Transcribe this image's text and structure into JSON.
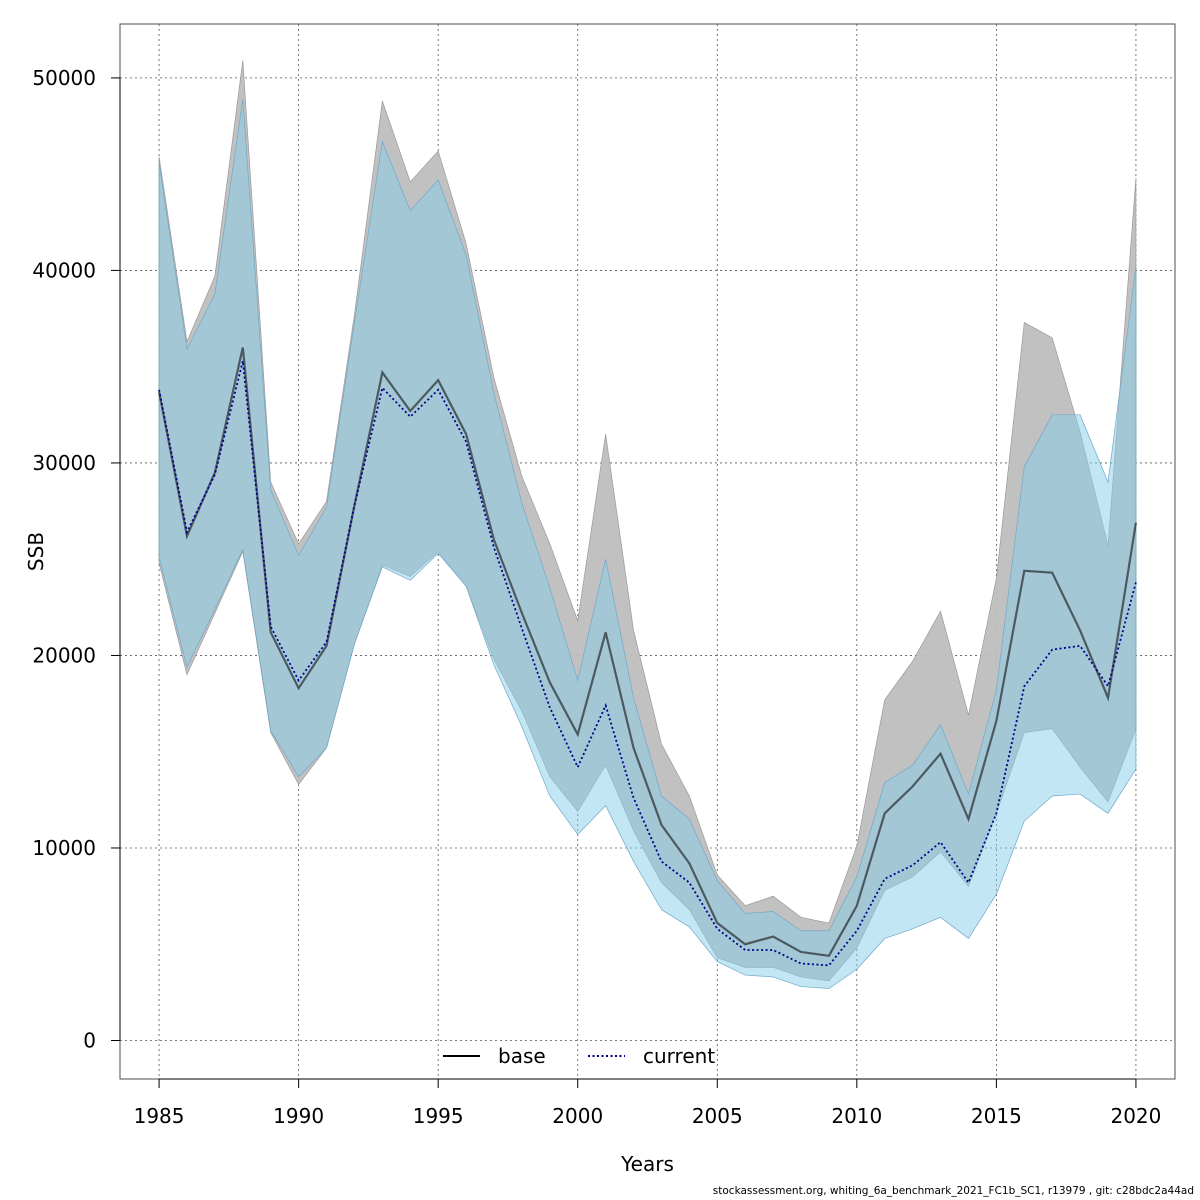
{
  "chart_data": {
    "type": "area",
    "xlabel": "Years",
    "ylabel": "SSB",
    "xlim": [
      1983.6,
      2021.4
    ],
    "ylim": [
      -2000,
      52800
    ],
    "x_ticks": [
      1985,
      1990,
      1995,
      2000,
      2005,
      2010,
      2015,
      2020
    ],
    "y_ticks": [
      0,
      10000,
      20000,
      30000,
      40000,
      50000
    ],
    "grid": true,
    "legend_position": "bottom-center",
    "x": [
      1985,
      1986,
      1987,
      1988,
      1989,
      1990,
      1991,
      1992,
      1993,
      1994,
      1995,
      1996,
      1997,
      1998,
      1999,
      2000,
      2001,
      2002,
      2003,
      2004,
      2005,
      2006,
      2007,
      2008,
      2009,
      2010,
      2011,
      2012,
      2013,
      2014,
      2015,
      2016,
      2017,
      2018,
      2019,
      2020
    ],
    "series": [
      {
        "name": "base",
        "line_style": "solid",
        "line_color": "#000000",
        "band_color": "#bebebe",
        "values": [
          33700,
          26200,
          29500,
          36000,
          21200,
          18300,
          20500,
          27800,
          34700,
          32700,
          34300,
          31500,
          26000,
          22200,
          18600,
          15900,
          21200,
          15200,
          11200,
          9200,
          6100,
          5000,
          5400,
          4600,
          4400,
          7000,
          11800,
          13200,
          14900,
          11500,
          16600,
          24400,
          24300,
          21300,
          17800,
          26900
        ],
        "lower": [
          24800,
          19000,
          22200,
          25400,
          16000,
          13300,
          15200,
          20600,
          24700,
          24100,
          25400,
          23600,
          19800,
          17100,
          13700,
          11900,
          14300,
          10900,
          8200,
          6800,
          4300,
          3800,
          3800,
          3300,
          3100,
          4800,
          7800,
          8500,
          9800,
          8000,
          11800,
          16000,
          16200,
          14200,
          12400,
          16200
        ],
        "upper": [
          45900,
          36300,
          39700,
          50900,
          29000,
          25800,
          28000,
          37700,
          48800,
          44600,
          46200,
          41400,
          34400,
          29300,
          25800,
          21800,
          31500,
          21300,
          15400,
          12700,
          8600,
          7000,
          7500,
          6400,
          6100,
          10100,
          17700,
          19700,
          22300,
          16900,
          24000,
          37300,
          36500,
          31600,
          25700,
          44800
        ]
      },
      {
        "name": "current",
        "line_style": "dotted",
        "line_color": "#00008b",
        "band_color": "#87ceeb",
        "values": [
          33800,
          26400,
          29400,
          35300,
          21500,
          18700,
          20700,
          27800,
          33900,
          32400,
          33800,
          31100,
          25600,
          21400,
          17300,
          14200,
          17400,
          12600,
          9300,
          8200,
          5800,
          4700,
          4700,
          4000,
          3900,
          5700,
          8400,
          9100,
          10300,
          8200,
          11800,
          18400,
          20300,
          20500,
          18400,
          23800
        ],
        "lower": [
          25100,
          19400,
          22400,
          25500,
          16100,
          13700,
          15200,
          20600,
          24600,
          23900,
          25300,
          23600,
          19500,
          16300,
          12700,
          10700,
          12200,
          9300,
          6800,
          5900,
          4100,
          3400,
          3300,
          2800,
          2700,
          3700,
          5300,
          5800,
          6400,
          5300,
          7600,
          11400,
          12700,
          12800,
          11800,
          14100
        ],
        "upper": [
          45600,
          35900,
          38800,
          48900,
          28600,
          25200,
          27700,
          37300,
          46700,
          43100,
          44700,
          40800,
          33600,
          27900,
          23500,
          18700,
          25000,
          17800,
          12700,
          11500,
          8300,
          6600,
          6700,
          5700,
          5700,
          8500,
          13400,
          14300,
          16400,
          12800,
          18200,
          29800,
          32500,
          32500,
          29000,
          40200
        ]
      }
    ]
  },
  "footer_text": "stockassessment.org, whiting_6a_benchmark_2021_FC1b_SC1, r13979 , git: c28bdc2a44ad"
}
